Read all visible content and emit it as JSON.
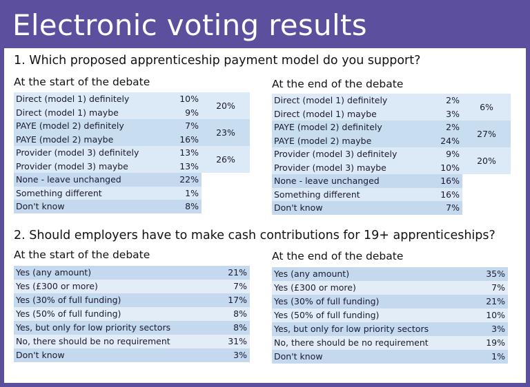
{
  "title": "Electronic voting results",
  "q1": {
    "question": "1. Which proposed apprenticeship payment model  do you support?",
    "start": {
      "heading": "At the start of the debate",
      "groups": [
        {
          "rows": [
            {
              "label": "Direct (model 1) definitely",
              "pct": "10%"
            },
            {
              "label": "Direct (model 1) maybe",
              "pct": "9%"
            }
          ],
          "subtotal": "20%"
        },
        {
          "rows": [
            {
              "label": "PAYE (model 2) definitely",
              "pct": "7%"
            },
            {
              "label": "PAYE (model 2) maybe",
              "pct": "16%"
            }
          ],
          "subtotal": "23%"
        },
        {
          "rows": [
            {
              "label": "Provider (model 3) definitely",
              "pct": "13%"
            },
            {
              "label": "Provider (model 3) maybe",
              "pct": "13%"
            }
          ],
          "subtotal": "26%"
        }
      ],
      "singles": [
        {
          "label": "None - leave unchanged",
          "pct": "22%"
        },
        {
          "label": "Something different",
          "pct": "1%"
        },
        {
          "label": "Don't know",
          "pct": "8%"
        }
      ]
    },
    "end": {
      "heading": "At the end of the debate",
      "groups": [
        {
          "rows": [
            {
              "label": "Direct (model 1) definitely",
              "pct": "2%"
            },
            {
              "label": "Direct (model 1) maybe",
              "pct": "3%"
            }
          ],
          "subtotal": "6%"
        },
        {
          "rows": [
            {
              "label": "PAYE (model 2) definitely",
              "pct": "2%"
            },
            {
              "label": "PAYE (model 2) maybe",
              "pct": "24%"
            }
          ],
          "subtotal": "27%"
        },
        {
          "rows": [
            {
              "label": "Provider (model 3) definitely",
              "pct": "9%"
            },
            {
              "label": "Provider (model 3) maybe",
              "pct": "10%"
            }
          ],
          "subtotal": "20%"
        }
      ],
      "singles": [
        {
          "label": "None - leave unchanged",
          "pct": "16%"
        },
        {
          "label": "Something different",
          "pct": "16%"
        },
        {
          "label": "Don't know",
          "pct": "7%"
        }
      ]
    }
  },
  "q2": {
    "question": "2. Should employers have to make cash contributions for 19+ apprenticeships?",
    "start": {
      "heading": "At the start of the debate",
      "rows": [
        {
          "label": "Yes (any amount)",
          "pct": "21%"
        },
        {
          "label": "Yes (£300 or more)",
          "pct": "7%"
        },
        {
          "label": "Yes (30% of full funding)",
          "pct": "17%"
        },
        {
          "label": "Yes (50% of full funding)",
          "pct": "8%"
        },
        {
          "label": "Yes, but only for low priority sectors",
          "pct": "8%"
        },
        {
          "label": "No, there should be no requirement",
          "pct": "31%"
        },
        {
          "label": "Don't know",
          "pct": "3%"
        }
      ]
    },
    "end": {
      "heading": "At the end of the debate",
      "rows": [
        {
          "label": "Yes (any amount)",
          "pct": "35%"
        },
        {
          "label": "Yes (£300 or more)",
          "pct": "7%"
        },
        {
          "label": "Yes (30% of full funding)",
          "pct": "21%"
        },
        {
          "label": "Yes (50% of full funding)",
          "pct": "10%"
        },
        {
          "label": "Yes, but only for low priority sectors",
          "pct": "3%"
        },
        {
          "label": "No, there should be no requirement",
          "pct": "19%"
        },
        {
          "label": "Don't know",
          "pct": "1%"
        }
      ]
    }
  },
  "colors": {
    "frame": "#5b4f9e",
    "row_dark": "#c4d8ee",
    "row_light": "#e3edf8"
  }
}
